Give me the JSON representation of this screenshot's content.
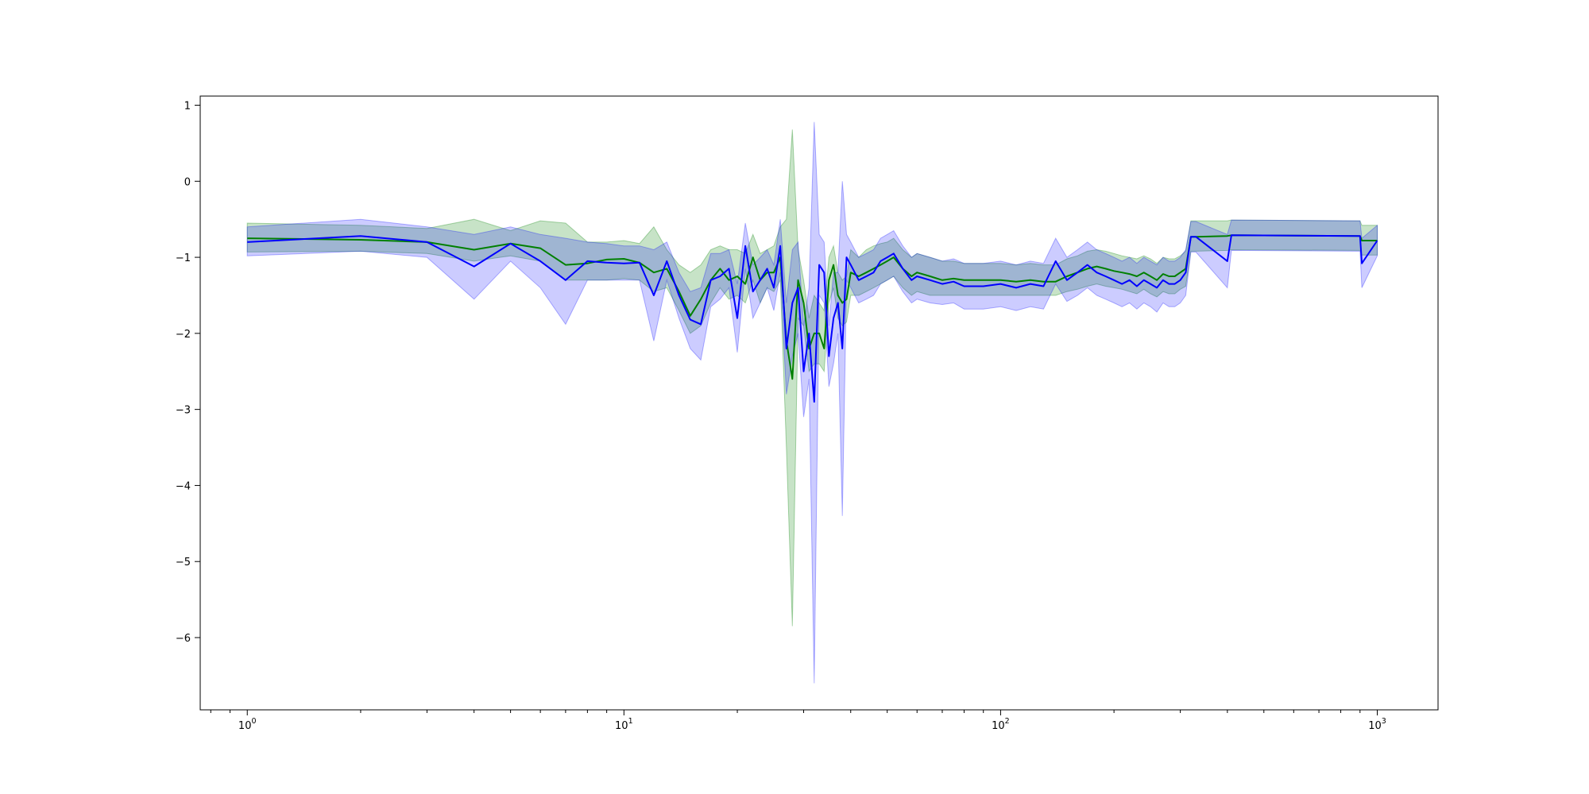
{
  "chart_data": {
    "type": "line",
    "title": "",
    "xlabel": "",
    "ylabel": "",
    "xscale": "log",
    "xlim": [
      0.75,
      1450
    ],
    "ylim": [
      -6.95,
      1.12
    ],
    "grid": false,
    "x_ticks": [
      {
        "value": 1,
        "base": "10",
        "exp": "0"
      },
      {
        "value": 10,
        "base": "10",
        "exp": "1"
      },
      {
        "value": 100,
        "base": "10",
        "exp": "2"
      },
      {
        "value": 1000,
        "base": "10",
        "exp": "3"
      }
    ],
    "y_ticks": [
      {
        "value": 1,
        "label": "1"
      },
      {
        "value": 0,
        "label": "0"
      },
      {
        "value": -1,
        "label": "−1"
      },
      {
        "value": -2,
        "label": "−2"
      },
      {
        "value": -3,
        "label": "−3"
      },
      {
        "value": -4,
        "label": "−4"
      },
      {
        "value": -5,
        "label": "−5"
      },
      {
        "value": -6,
        "label": "−6"
      }
    ],
    "series": [
      {
        "color": "#008000",
        "band_color": "#008000",
        "band_opacity": 0.22,
        "x": [
          1,
          2,
          3,
          4,
          5,
          6,
          7,
          8,
          9,
          10,
          11,
          12,
          13,
          14,
          15,
          16,
          17,
          18,
          19,
          20,
          21,
          22,
          23,
          24,
          25,
          26,
          27,
          28,
          29,
          30,
          31,
          32,
          33,
          34,
          35,
          36,
          37,
          38,
          39,
          40,
          42,
          44,
          46,
          48,
          50,
          52,
          55,
          58,
          60,
          65,
          70,
          75,
          80,
          90,
          100,
          110,
          120,
          130,
          140,
          150,
          160,
          170,
          180,
          190,
          200,
          210,
          220,
          230,
          240,
          250,
          260,
          270,
          280,
          290,
          300,
          310,
          320,
          330,
          400,
          410,
          900,
          910,
          1000
        ],
        "y": [
          -0.75,
          -0.77,
          -0.8,
          -0.9,
          -0.82,
          -0.88,
          -1.1,
          -1.08,
          -1.03,
          -1.02,
          -1.07,
          -1.2,
          -1.15,
          -1.45,
          -1.77,
          -1.55,
          -1.3,
          -1.15,
          -1.3,
          -1.25,
          -1.35,
          -1.0,
          -1.3,
          -1.2,
          -1.2,
          -1.0,
          -2.1,
          -2.6,
          -1.3,
          -1.6,
          -2.2,
          -2.0,
          -2.0,
          -2.2,
          -1.3,
          -1.1,
          -1.5,
          -1.6,
          -1.55,
          -1.2,
          -1.25,
          -1.2,
          -1.15,
          -1.1,
          -1.05,
          -1.0,
          -1.15,
          -1.25,
          -1.2,
          -1.25,
          -1.3,
          -1.28,
          -1.3,
          -1.3,
          -1.3,
          -1.32,
          -1.3,
          -1.32,
          -1.32,
          -1.25,
          -1.2,
          -1.15,
          -1.12,
          -1.15,
          -1.18,
          -1.2,
          -1.22,
          -1.25,
          -1.2,
          -1.25,
          -1.3,
          -1.22,
          -1.25,
          -1.25,
          -1.2,
          -1.15,
          -0.73,
          -0.73,
          -0.72,
          -0.71,
          -0.72,
          -0.78,
          -0.78
        ],
        "lower": [
          -0.93,
          -0.92,
          -0.95,
          -1.05,
          -0.98,
          -1.05,
          -1.3,
          -1.3,
          -1.3,
          -1.28,
          -1.3,
          -1.45,
          -1.4,
          -1.7,
          -2.0,
          -1.9,
          -1.6,
          -1.4,
          -1.55,
          -1.5,
          -1.6,
          -1.3,
          -1.6,
          -1.4,
          -1.45,
          -1.3,
          -3.5,
          -5.85,
          -1.8,
          -1.9,
          -2.5,
          -2.4,
          -2.4,
          -2.5,
          -1.6,
          -1.4,
          -1.8,
          -1.9,
          -1.85,
          -1.5,
          -1.5,
          -1.45,
          -1.4,
          -1.35,
          -1.3,
          -1.25,
          -1.4,
          -1.5,
          -1.45,
          -1.5,
          -1.5,
          -1.5,
          -1.5,
          -1.5,
          -1.5,
          -1.5,
          -1.5,
          -1.5,
          -1.5,
          -1.45,
          -1.42,
          -1.38,
          -1.35,
          -1.38,
          -1.4,
          -1.42,
          -1.45,
          -1.48,
          -1.42,
          -1.48,
          -1.52,
          -1.45,
          -1.48,
          -1.48,
          -1.42,
          -1.38,
          -0.92,
          -0.92,
          -0.91,
          -0.9,
          -0.91,
          -0.97,
          -0.97
        ],
        "upper": [
          -0.55,
          -0.58,
          -0.62,
          -0.5,
          -0.65,
          -0.52,
          -0.55,
          -0.8,
          -0.8,
          -0.78,
          -0.82,
          -0.6,
          -0.9,
          -1.1,
          -1.2,
          -1.1,
          -0.9,
          -0.85,
          -0.9,
          -0.9,
          -0.95,
          -0.7,
          -0.95,
          -0.9,
          -0.85,
          -0.6,
          -0.5,
          0.68,
          -0.9,
          -1.3,
          -1.8,
          -1.5,
          -1.6,
          -1.7,
          -1.0,
          -0.85,
          -1.2,
          -1.3,
          -1.25,
          -0.9,
          -1.0,
          -0.9,
          -0.85,
          -0.82,
          -0.8,
          -0.75,
          -0.9,
          -1.0,
          -0.95,
          -1.0,
          -1.05,
          -1.05,
          -1.08,
          -1.08,
          -1.08,
          -1.1,
          -1.08,
          -1.1,
          -1.1,
          -1.02,
          -0.98,
          -0.92,
          -0.9,
          -0.92,
          -0.95,
          -0.98,
          -1.0,
          -1.02,
          -0.98,
          -1.02,
          -1.08,
          -1.0,
          -1.02,
          -1.02,
          -0.98,
          -0.92,
          -0.52,
          -0.52,
          -0.52,
          -0.51,
          -0.52,
          -0.58,
          -0.58
        ]
      },
      {
        "color": "#0000ff",
        "band_color": "#0000ff",
        "band_opacity": 0.2,
        "x": [
          1,
          2,
          3,
          4,
          5,
          6,
          7,
          8,
          9,
          10,
          11,
          12,
          13,
          14,
          15,
          16,
          17,
          18,
          19,
          20,
          21,
          22,
          23,
          24,
          25,
          26,
          27,
          28,
          29,
          30,
          31,
          32,
          33,
          34,
          35,
          36,
          37,
          38,
          39,
          40,
          42,
          44,
          46,
          48,
          50,
          52,
          55,
          58,
          60,
          65,
          70,
          75,
          80,
          90,
          100,
          110,
          120,
          130,
          140,
          150,
          160,
          170,
          180,
          190,
          200,
          210,
          220,
          230,
          240,
          250,
          260,
          270,
          280,
          290,
          300,
          310,
          320,
          330,
          400,
          410,
          900,
          910,
          1000
        ],
        "y": [
          -0.8,
          -0.72,
          -0.8,
          -1.12,
          -0.82,
          -1.05,
          -1.3,
          -1.05,
          -1.07,
          -1.08,
          -1.07,
          -1.5,
          -1.05,
          -1.5,
          -1.82,
          -1.88,
          -1.3,
          -1.25,
          -1.15,
          -1.8,
          -0.85,
          -1.45,
          -1.3,
          -1.15,
          -1.4,
          -0.85,
          -2.2,
          -1.6,
          -1.4,
          -2.5,
          -2.0,
          -2.9,
          -1.1,
          -1.2,
          -2.3,
          -1.8,
          -1.6,
          -2.2,
          -1.0,
          -1.1,
          -1.3,
          -1.25,
          -1.2,
          -1.05,
          -1.0,
          -0.95,
          -1.15,
          -1.3,
          -1.25,
          -1.3,
          -1.35,
          -1.32,
          -1.38,
          -1.38,
          -1.35,
          -1.4,
          -1.35,
          -1.38,
          -1.05,
          -1.3,
          -1.2,
          -1.1,
          -1.2,
          -1.25,
          -1.3,
          -1.35,
          -1.3,
          -1.38,
          -1.3,
          -1.35,
          -1.4,
          -1.3,
          -1.35,
          -1.35,
          -1.3,
          -1.2,
          -0.73,
          -0.73,
          -1.05,
          -0.71,
          -0.72,
          -1.08,
          -0.78
        ],
        "lower": [
          -0.98,
          -0.92,
          -1.0,
          -1.55,
          -1.05,
          -1.4,
          -1.88,
          -1.3,
          -1.3,
          -1.3,
          -1.3,
          -2.1,
          -1.3,
          -1.8,
          -2.2,
          -2.35,
          -1.65,
          -1.55,
          -1.4,
          -2.25,
          -1.15,
          -1.8,
          -1.6,
          -1.4,
          -1.7,
          -1.2,
          -2.8,
          -2.3,
          -2.0,
          -3.1,
          -2.6,
          -6.6,
          -1.5,
          -1.6,
          -2.7,
          -2.4,
          -2.0,
          -4.4,
          -1.3,
          -1.4,
          -1.6,
          -1.55,
          -1.5,
          -1.35,
          -1.3,
          -1.25,
          -1.45,
          -1.6,
          -1.55,
          -1.6,
          -1.62,
          -1.6,
          -1.68,
          -1.68,
          -1.65,
          -1.7,
          -1.65,
          -1.68,
          -1.35,
          -1.58,
          -1.5,
          -1.4,
          -1.5,
          -1.55,
          -1.6,
          -1.65,
          -1.6,
          -1.68,
          -1.6,
          -1.65,
          -1.72,
          -1.6,
          -1.65,
          -1.65,
          -1.6,
          -1.5,
          -0.93,
          -0.93,
          -1.4,
          -0.91,
          -0.92,
          -1.4,
          -0.98
        ],
        "upper": [
          -0.6,
          -0.5,
          -0.6,
          -0.7,
          -0.6,
          -0.7,
          -0.75,
          -0.8,
          -0.82,
          -0.85,
          -0.85,
          -0.9,
          -0.8,
          -1.2,
          -1.45,
          -1.4,
          -0.95,
          -0.95,
          -0.9,
          -1.35,
          -0.55,
          -1.1,
          -1.0,
          -0.9,
          -1.1,
          -0.5,
          -1.6,
          -0.9,
          -0.8,
          -1.9,
          -1.4,
          0.78,
          -0.7,
          -0.8,
          -1.9,
          -1.2,
          -1.2,
          0.0,
          -0.7,
          -0.8,
          -1.0,
          -0.95,
          -0.9,
          -0.75,
          -0.7,
          -0.65,
          -0.85,
          -1.0,
          -0.95,
          -1.0,
          -1.05,
          -1.02,
          -1.08,
          -1.08,
          -1.05,
          -1.1,
          -1.05,
          -1.08,
          -0.75,
          -1.0,
          -0.9,
          -0.8,
          -0.9,
          -0.95,
          -1.0,
          -1.05,
          -1.0,
          -1.08,
          -1.0,
          -1.05,
          -1.1,
          -1.0,
          -1.05,
          -1.05,
          -1.0,
          -0.9,
          -0.53,
          -0.53,
          -0.7,
          -0.51,
          -0.52,
          -0.75,
          -0.58
        ]
      }
    ],
    "overlap_color": "#5a7fbf"
  }
}
